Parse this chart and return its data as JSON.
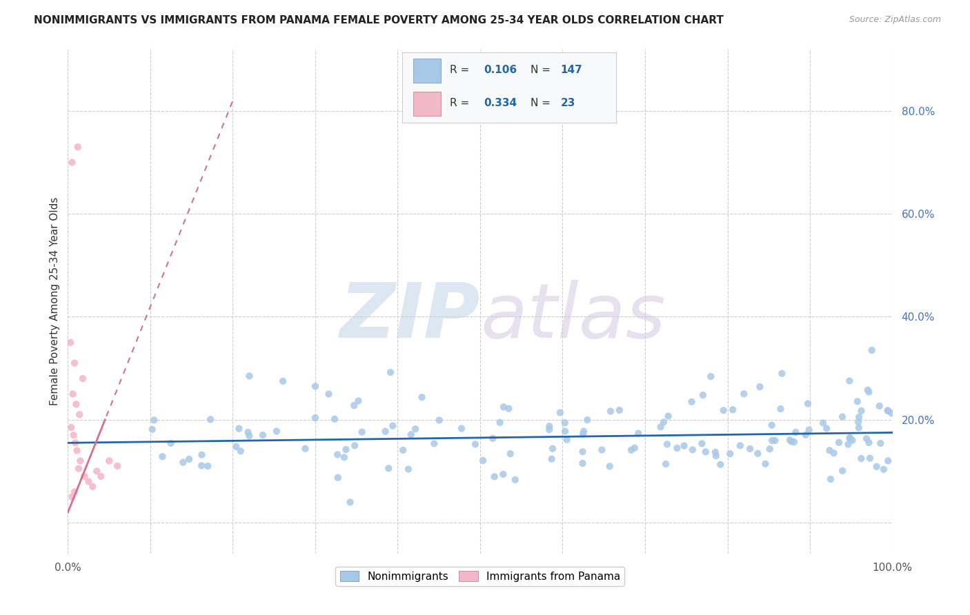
{
  "title": "NONIMMIGRANTS VS IMMIGRANTS FROM PANAMA FEMALE POVERTY AMONG 25-34 YEAR OLDS CORRELATION CHART",
  "source": "Source: ZipAtlas.com",
  "ylabel": "Female Poverty Among 25-34 Year Olds",
  "xlim": [
    0.0,
    1.0
  ],
  "ylim": [
    -0.06,
    0.92
  ],
  "watermark_zip": "ZIP",
  "watermark_atlas": "atlas",
  "background_color": "#ffffff",
  "grid_color": "#cccccc",
  "blue_dot_color": "#a8c8e8",
  "blue_dot_edge": "none",
  "pink_dot_color": "#f5b8c8",
  "pink_dot_edge": "none",
  "blue_line_color": "#2166ac",
  "pink_line_color": "#d4728a",
  "legend_R_blue": "0.106",
  "legend_N_blue": "147",
  "legend_R_pink": "0.334",
  "legend_N_pink": "23",
  "label_nonimmigrants": "Nonimmigrants",
  "label_immigrants": "Immigrants from Panama",
  "blue_trend_x0": 0.0,
  "blue_trend_x1": 1.0,
  "blue_trend_y0": 0.155,
  "blue_trend_y1": 0.175,
  "pink_trend_x0": 0.0,
  "pink_trend_x1": 0.2,
  "pink_trend_y0": 0.02,
  "pink_trend_y1": 0.82,
  "pink_scatter_x": [
    0.005,
    0.012,
    0.003,
    0.008,
    0.018,
    0.006,
    0.01,
    0.014,
    0.004,
    0.007,
    0.009,
    0.011,
    0.015,
    0.013,
    0.02,
    0.025,
    0.03,
    0.008,
    0.005,
    0.035,
    0.04,
    0.05,
    0.06
  ],
  "pink_scatter_y": [
    0.7,
    0.73,
    0.35,
    0.31,
    0.28,
    0.25,
    0.23,
    0.21,
    0.185,
    0.17,
    0.155,
    0.14,
    0.12,
    0.105,
    0.09,
    0.08,
    0.07,
    0.06,
    0.05,
    0.1,
    0.09,
    0.12,
    0.11
  ],
  "dot_size": 55
}
